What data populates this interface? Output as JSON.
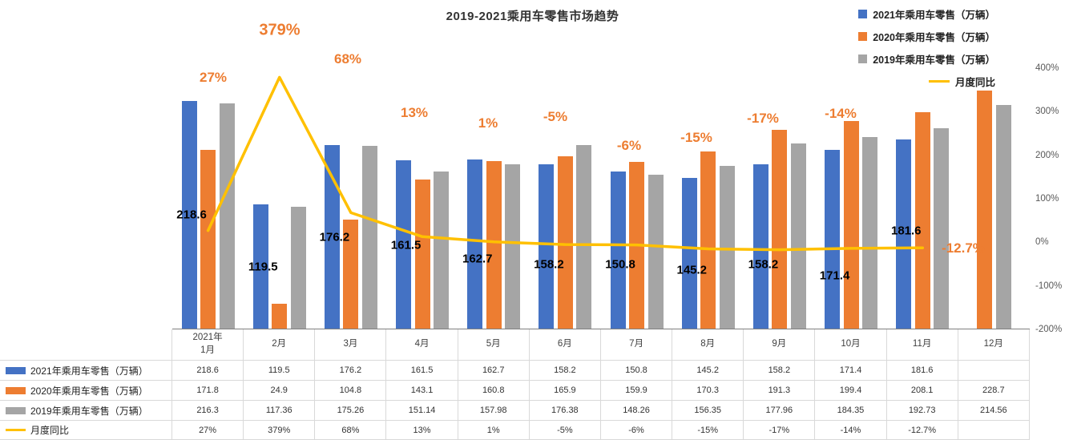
{
  "title": "2019-2021乘用车零售市场趋势",
  "background": "#ffffff",
  "legend": [
    {
      "label": "2021年乘用车零售（万辆）",
      "color": "#4472C4",
      "type": "bar"
    },
    {
      "label": "2020年乘用车零售（万辆）",
      "color": "#ED7D31",
      "type": "bar"
    },
    {
      "label": "2019年乘用车零售（万辆）",
      "color": "#A5A5A5",
      "type": "bar"
    },
    {
      "label": "月度同比",
      "color": "#FFC000",
      "type": "line"
    }
  ],
  "right_axis": {
    "labels": [
      "400%",
      "300%",
      "200%",
      "100%",
      "0%",
      "-100%",
      "-200%"
    ],
    "max": 400,
    "min": -200
  },
  "chart_data": {
    "type": "combo-bar-line",
    "title": "2019-2021乘用车零售市场趋势",
    "categories": [
      "2021年1月",
      "2月",
      "3月",
      "4月",
      "5月",
      "6月",
      "7月",
      "8月",
      "9月",
      "10月",
      "11月",
      "12月"
    ],
    "bar_axis": {
      "min": 0,
      "max": 250
    },
    "pct_axis": {
      "min": -200,
      "max": 400
    },
    "grid": "off",
    "legend_position": "top-right",
    "series": [
      {
        "name": "2021年乘用车零售（万辆）",
        "type": "bar",
        "color": "#4472C4",
        "values": [
          218.6,
          119.5,
          176.2,
          161.5,
          162.7,
          158.2,
          150.8,
          145.2,
          158.2,
          171.4,
          181.6,
          null
        ]
      },
      {
        "name": "2020年乘用车零售（万辆）",
        "type": "bar",
        "color": "#ED7D31",
        "values": [
          171.8,
          24.9,
          104.8,
          143.1,
          160.8,
          165.9,
          159.9,
          170.3,
          191.3,
          199.4,
          208.1,
          228.7
        ]
      },
      {
        "name": "2019年乘用车零售（万辆）",
        "type": "bar",
        "color": "#A5A5A5",
        "values": [
          216.3,
          117.36,
          175.26,
          151.14,
          157.98,
          176.38,
          148.26,
          156.35,
          177.96,
          184.35,
          192.73,
          214.56
        ]
      },
      {
        "name": "月度同比",
        "type": "line",
        "color": "#FFC000",
        "values": [
          27,
          379,
          68,
          13,
          1,
          -5,
          -6,
          -15,
          -17,
          -14,
          -12.7,
          null
        ]
      }
    ],
    "yoy_labels": [
      "27%",
      "379%",
      "68%",
      "13%",
      "1%",
      "-5%",
      "-6%",
      "-15%",
      "-17%",
      "-14%",
      "-12.7%"
    ],
    "value_labels": [
      "218.6",
      "119.5",
      "176.2",
      "161.5",
      "162.7",
      "158.2",
      "150.8",
      "145.2",
      "158.2",
      "171.4",
      "181.6"
    ]
  },
  "table": {
    "months_row": [
      "2021年\n1月",
      "2月",
      "3月",
      "4月",
      "5月",
      "6月",
      "7月",
      "8月",
      "9月",
      "10月",
      "11月",
      "12月"
    ],
    "rows": [
      {
        "label": "2021年乘用车零售（万辆）",
        "marker": "bar",
        "marker_color": "#4472C4",
        "cells": [
          "218.6",
          "119.5",
          "176.2",
          "161.5",
          "162.7",
          "158.2",
          "150.8",
          "145.2",
          "158.2",
          "171.4",
          "181.6",
          ""
        ]
      },
      {
        "label": "2020年乘用车零售（万辆）",
        "marker": "bar",
        "marker_color": "#ED7D31",
        "cells": [
          "171.8",
          "24.9",
          "104.8",
          "143.1",
          "160.8",
          "165.9",
          "159.9",
          "170.3",
          "191.3",
          "199.4",
          "208.1",
          "228.7"
        ]
      },
      {
        "label": "2019年乘用车零售（万辆）",
        "marker": "bar",
        "marker_color": "#A5A5A5",
        "cells": [
          "216.3",
          "117.36",
          "175.26",
          "151.14",
          "157.98",
          "176.38",
          "148.26",
          "156.35",
          "177.96",
          "184.35",
          "192.73",
          "214.56"
        ]
      },
      {
        "label": "月度同比",
        "marker": "line",
        "marker_color": "#FFC000",
        "cells": [
          "27%",
          "379%",
          "68%",
          "13%",
          "1%",
          "-5%",
          "-6%",
          "-15%",
          "-17%",
          "-14%",
          "-12.7%",
          ""
        ]
      }
    ]
  }
}
